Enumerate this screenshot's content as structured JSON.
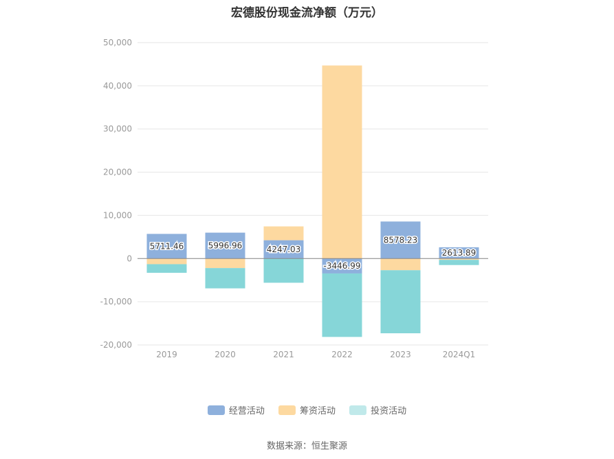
{
  "chart_data": {
    "type": "bar",
    "stacked": true,
    "title": "宏德股份现金流净额（万元）",
    "categories": [
      "2019",
      "2020",
      "2021",
      "2022",
      "2023",
      "2024Q1"
    ],
    "series": [
      {
        "name": "经营活动",
        "color": "#8eb0dc",
        "values": [
          5711.46,
          5996.96,
          4247.03,
          -3446.99,
          8578.23,
          2613.89
        ]
      },
      {
        "name": "筹资活动",
        "color": "#fdd9a0",
        "values": [
          -1300,
          -2200,
          3200,
          44700,
          -2700,
          -300
        ]
      },
      {
        "name": "投资活动",
        "color": "#86d6d8",
        "values": [
          -2000,
          -4700,
          -5600,
          -14700,
          -14600,
          -1200
        ]
      }
    ],
    "data_labels": [
      "5711.46",
      "5996.96",
      "4247.03",
      "-3446.99",
      "8578.23",
      "2613.89"
    ],
    "yticks": [
      "50,000",
      "40,000",
      "30,000",
      "20,000",
      "10,000",
      "0",
      "-10,000",
      "-20,000"
    ],
    "ylim": [
      -20000,
      50000
    ],
    "grid": true,
    "legend_position": "bottom"
  },
  "legend": {
    "items": [
      "经营活动",
      "筹资活动",
      "投资活动"
    ]
  },
  "source": "数据来源：恒生聚源"
}
